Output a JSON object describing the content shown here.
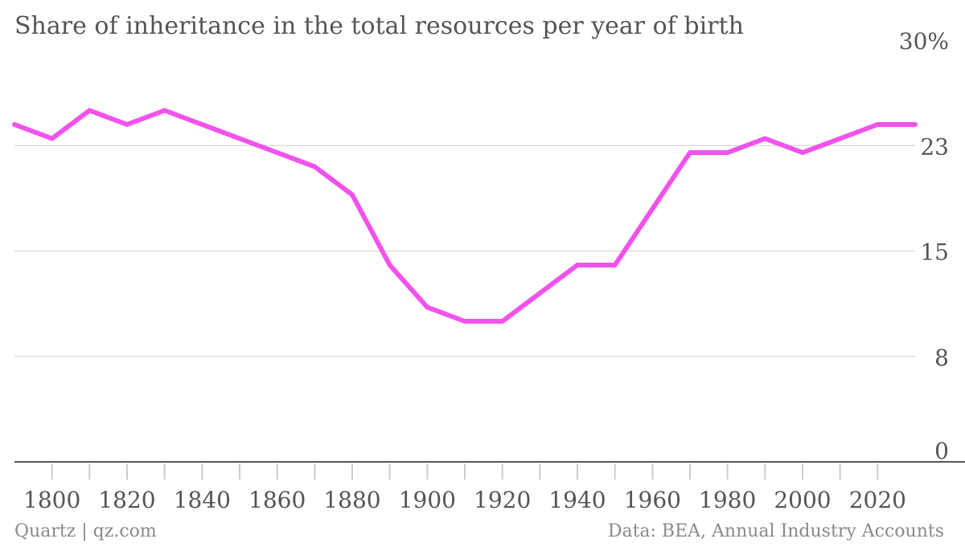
{
  "chart_data": {
    "type": "line",
    "title": "Share of inheritance in the total resources per year of birth",
    "xlabel": "",
    "ylabel": "",
    "x": [
      1790,
      1800,
      1810,
      1820,
      1830,
      1840,
      1850,
      1860,
      1870,
      1880,
      1890,
      1900,
      1910,
      1920,
      1930,
      1940,
      1950,
      1960,
      1970,
      1980,
      1990,
      2000,
      2010,
      2020,
      2030
    ],
    "series": [
      {
        "name": "",
        "color": "#f252ec",
        "values": [
          24.0,
          23.0,
          25.0,
          24.0,
          25.0,
          24.0,
          23.0,
          22.0,
          21.0,
          19.0,
          14.0,
          11.0,
          10.0,
          10.0,
          12.0,
          14.0,
          14.0,
          18.0,
          22.0,
          22.0,
          23.0,
          22.0,
          23.0,
          24.0,
          24.0
        ]
      }
    ],
    "xlim": [
      1790,
      2030
    ],
    "ylim": [
      0,
      30
    ],
    "yticks": [
      {
        "value": 0,
        "label": "0"
      },
      {
        "value": 7.5,
        "label": "8"
      },
      {
        "value": 15,
        "label": "15"
      },
      {
        "value": 22.5,
        "label": "23"
      },
      {
        "value": 30,
        "label": "30%"
      }
    ],
    "xticks": [
      {
        "value": 1800,
        "label": "1800"
      },
      {
        "value": 1820,
        "label": "1820"
      },
      {
        "value": 1840,
        "label": "1840"
      },
      {
        "value": 1860,
        "label": "1860"
      },
      {
        "value": 1880,
        "label": "1880"
      },
      {
        "value": 1900,
        "label": "1900"
      },
      {
        "value": 1920,
        "label": "1920"
      },
      {
        "value": 1940,
        "label": "1940"
      },
      {
        "value": 1960,
        "label": "1960"
      },
      {
        "value": 1980,
        "label": "1980"
      },
      {
        "value": 2000,
        "label": "2000"
      },
      {
        "value": 2020,
        "label": "2020"
      }
    ],
    "grid": true,
    "legend": "none"
  },
  "footer": {
    "credit": "Quartz | qz.com",
    "source": "Data: BEA, Annual Industry Accounts"
  }
}
